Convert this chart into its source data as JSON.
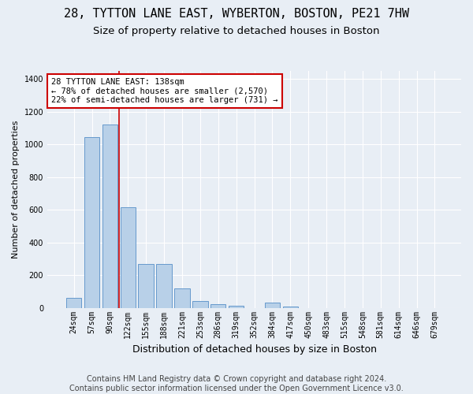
{
  "title": "28, TYTTON LANE EAST, WYBERTON, BOSTON, PE21 7HW",
  "subtitle": "Size of property relative to detached houses in Boston",
  "xlabel": "Distribution of detached houses by size in Boston",
  "ylabel": "Number of detached properties",
  "categories": [
    "24sqm",
    "57sqm",
    "90sqm",
    "122sqm",
    "155sqm",
    "188sqm",
    "221sqm",
    "253sqm",
    "286sqm",
    "319sqm",
    "352sqm",
    "384sqm",
    "417sqm",
    "450sqm",
    "483sqm",
    "515sqm",
    "548sqm",
    "581sqm",
    "614sqm",
    "646sqm",
    "679sqm"
  ],
  "values": [
    60,
    1045,
    1120,
    615,
    270,
    270,
    120,
    40,
    20,
    15,
    0,
    30,
    10,
    0,
    0,
    0,
    0,
    0,
    0,
    0,
    0
  ],
  "bar_color": "#b8d0e8",
  "bar_edge_color": "#6699cc",
  "vline_color": "#cc0000",
  "vline_x_idx": 3,
  "annotation_text": "28 TYTTON LANE EAST: 138sqm\n← 78% of detached houses are smaller (2,570)\n22% of semi-detached houses are larger (731) →",
  "annotation_box_color": "white",
  "annotation_box_edge_color": "#cc0000",
  "ylim": [
    0,
    1450
  ],
  "yticks": [
    0,
    200,
    400,
    600,
    800,
    1000,
    1200,
    1400
  ],
  "footer": "Contains HM Land Registry data © Crown copyright and database right 2024.\nContains public sector information licensed under the Open Government Licence v3.0.",
  "background_color": "#e8eef5",
  "grid_color": "white",
  "title_fontsize": 11,
  "subtitle_fontsize": 9.5,
  "xlabel_fontsize": 9,
  "ylabel_fontsize": 8,
  "footer_fontsize": 7,
  "tick_fontsize": 7
}
